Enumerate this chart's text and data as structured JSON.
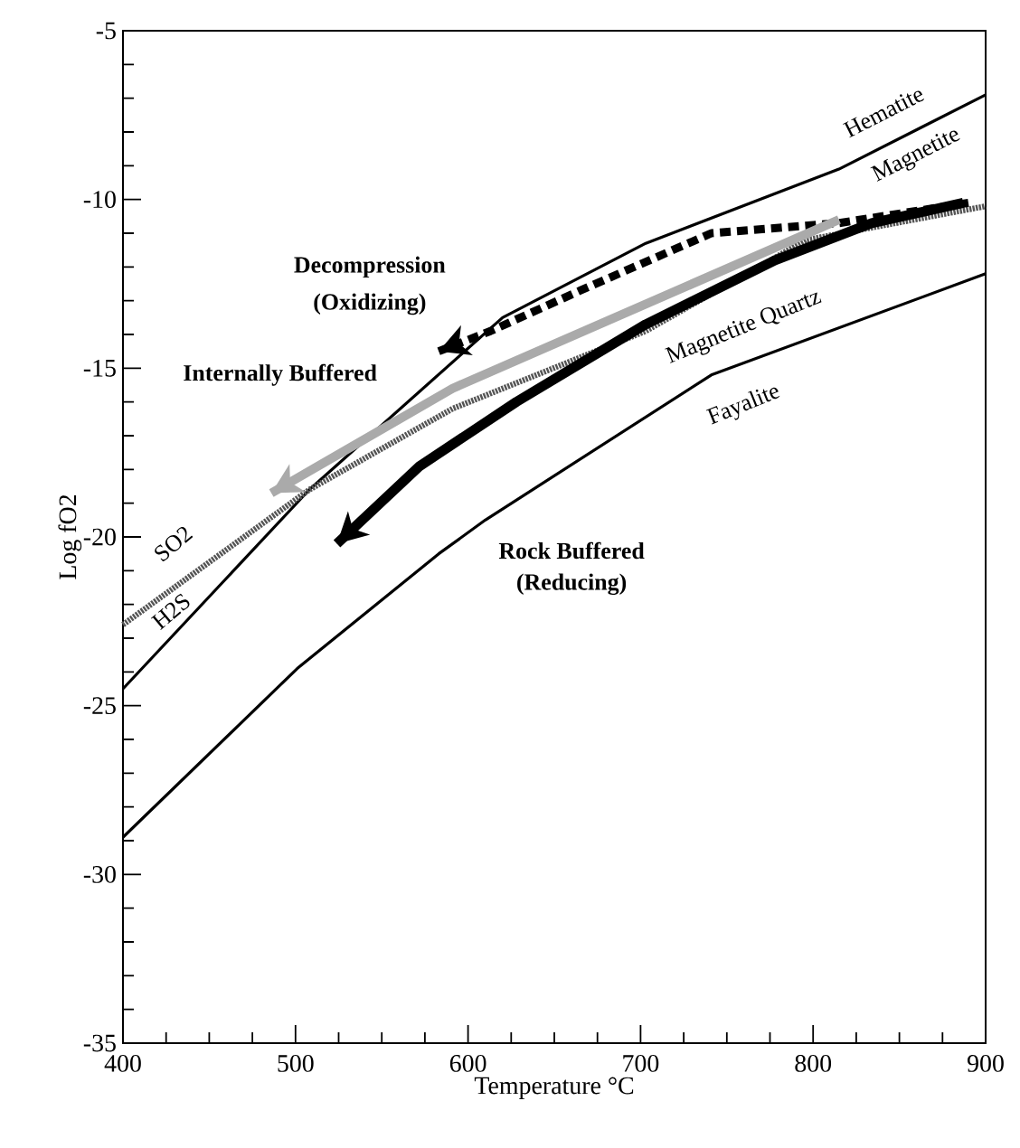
{
  "chart_data": {
    "type": "line",
    "xlabel": "Temperature °C",
    "ylabel": "Log fO2",
    "xlim": [
      400,
      900
    ],
    "ylim": [
      -35,
      -5
    ],
    "xticks": [
      400,
      500,
      600,
      700,
      800,
      900
    ],
    "yticks": [
      -35,
      -30,
      -25,
      -20,
      -15,
      -10,
      -5
    ],
    "series": [
      {
        "color": "#000000",
        "line_style": "solid",
        "x": [
          400,
          508,
          620,
          703,
          815,
          900
        ],
        "values": [
          -24.5,
          -18.6,
          -13.5,
          -11.3,
          -9.1,
          -6.9
        ]
      },
      {
        "color": "#555555",
        "line_style": "dotted",
        "x": [
          400,
          508,
          591,
          703,
          796,
          900
        ],
        "values": [
          -22.6,
          -18.6,
          -16.2,
          -13.9,
          -11.2,
          -10.2
        ]
      },
      {
        "color": "#000000",
        "line_style": "solid",
        "x": [
          400,
          501,
          583,
          610,
          741,
          900
        ],
        "values": [
          -28.9,
          -23.9,
          -20.5,
          -19.5,
          -15.2,
          -12.2
        ]
      },
      {
        "color": "#000000",
        "line_style": "dashed",
        "x": [
          890,
          815,
          741,
          665,
          613,
          583
        ],
        "values": [
          -10.1,
          -10.7,
          -11.0,
          -12.7,
          -13.9,
          -14.5
        ]
      },
      {
        "color": "#aaaaaa",
        "line_style": "solid",
        "x": [
          815,
          703,
          591,
          486
        ],
        "values": [
          -10.6,
          -13.1,
          -15.6,
          -18.7
        ]
      },
      {
        "color": "#000000",
        "line_style": "solid",
        "x": [
          887,
          834,
          778,
          703,
          628,
          572,
          524
        ],
        "values": [
          -10.1,
          -10.7,
          -11.8,
          -13.7,
          -16.0,
          -17.9,
          -20.2
        ]
      }
    ],
    "annotations": [
      "Hematite",
      "Magnetite",
      "Magnetite Quartz",
      "Fayalite",
      "Decompression",
      "(Oxidizing)",
      "Internally Buffered",
      "Rock Buffered",
      "(Reducing)",
      "SO2",
      "H2S"
    ]
  }
}
